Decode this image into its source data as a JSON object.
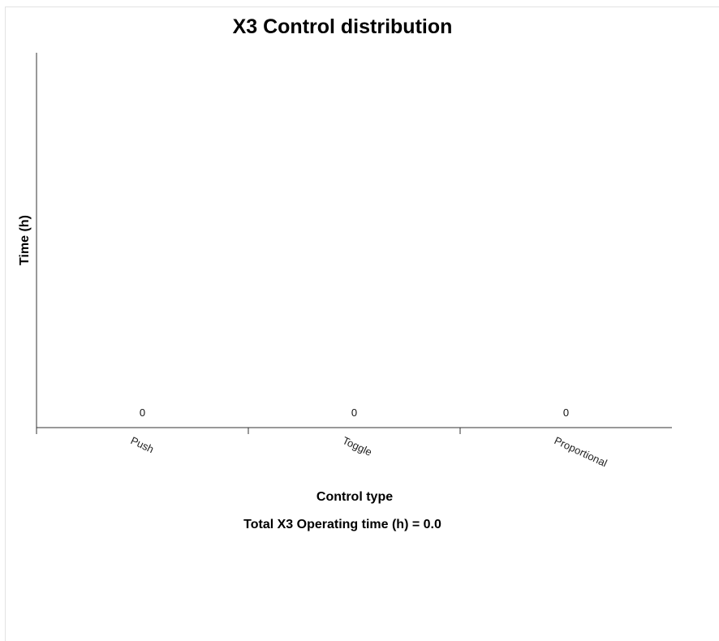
{
  "chart_data": {
    "type": "bar",
    "title": "X3 Control distribution",
    "xlabel": "Control type",
    "ylabel": "Time (h)",
    "categories": [
      "Push",
      "Toggle",
      "Proportional"
    ],
    "values": [
      0,
      0,
      0
    ],
    "data_labels": [
      "0",
      "0",
      "0"
    ],
    "ylim": [
      0,
      1
    ],
    "grid": false,
    "legend": "none"
  },
  "footer": {
    "total_text": "Total X3 Operating time (h) = 0.0"
  },
  "colors": {
    "axis": "#333333",
    "bar": "#4a7fb5",
    "frame": "#e3e3e3"
  }
}
